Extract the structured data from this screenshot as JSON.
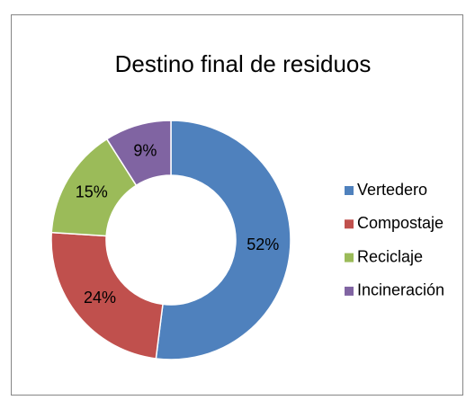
{
  "chart_data": {
    "type": "donut",
    "title": "Destino final de residuos",
    "categories": [
      "Vertedero",
      "Compostaje",
      "Reciclaje",
      "Incineración"
    ],
    "values": [
      52,
      24,
      15,
      9
    ],
    "value_labels": [
      "52%",
      "24%",
      "15%",
      "9%"
    ],
    "colors": [
      "#4f81bd",
      "#c0504d",
      "#9bbb59",
      "#8064a2"
    ],
    "legend": "right"
  }
}
